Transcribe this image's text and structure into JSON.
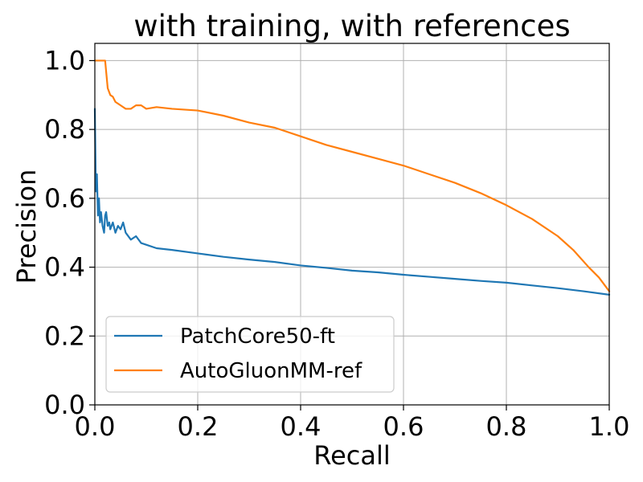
{
  "chart_data": {
    "type": "line",
    "title": "with training, with references",
    "xlabel": "Recall",
    "ylabel": "Precision",
    "xlim": [
      0.0,
      1.0
    ],
    "ylim": [
      0.0,
      1.05
    ],
    "xticks": [
      "0.0",
      "0.2",
      "0.4",
      "0.6",
      "0.8",
      "1.0"
    ],
    "yticks": [
      "0.0",
      "0.2",
      "0.4",
      "0.6",
      "0.8",
      "1.0"
    ],
    "grid": true,
    "legend_position": "lower-left",
    "series": [
      {
        "name": "PatchCore50-ft",
        "color": "#1f77b4",
        "points": [
          [
            0.0,
            0.86
          ],
          [
            0.002,
            0.62
          ],
          [
            0.004,
            0.67
          ],
          [
            0.006,
            0.55
          ],
          [
            0.008,
            0.6
          ],
          [
            0.01,
            0.53
          ],
          [
            0.012,
            0.56
          ],
          [
            0.015,
            0.52
          ],
          [
            0.018,
            0.5
          ],
          [
            0.02,
            0.55
          ],
          [
            0.022,
            0.56
          ],
          [
            0.025,
            0.52
          ],
          [
            0.028,
            0.53
          ],
          [
            0.03,
            0.51
          ],
          [
            0.035,
            0.53
          ],
          [
            0.04,
            0.5
          ],
          [
            0.045,
            0.52
          ],
          [
            0.05,
            0.51
          ],
          [
            0.055,
            0.53
          ],
          [
            0.06,
            0.5
          ],
          [
            0.07,
            0.48
          ],
          [
            0.08,
            0.49
          ],
          [
            0.09,
            0.47
          ],
          [
            0.1,
            0.465
          ],
          [
            0.12,
            0.455
          ],
          [
            0.15,
            0.45
          ],
          [
            0.2,
            0.44
          ],
          [
            0.25,
            0.43
          ],
          [
            0.3,
            0.422
          ],
          [
            0.35,
            0.415
          ],
          [
            0.4,
            0.405
          ],
          [
            0.45,
            0.398
          ],
          [
            0.5,
            0.39
          ],
          [
            0.55,
            0.385
          ],
          [
            0.6,
            0.378
          ],
          [
            0.65,
            0.372
          ],
          [
            0.7,
            0.366
          ],
          [
            0.75,
            0.36
          ],
          [
            0.8,
            0.355
          ],
          [
            0.85,
            0.347
          ],
          [
            0.9,
            0.339
          ],
          [
            0.95,
            0.33
          ],
          [
            1.0,
            0.32
          ]
        ]
      },
      {
        "name": "AutoGluonMM-ref",
        "color": "#ff7f0e",
        "points": [
          [
            0.0,
            1.0
          ],
          [
            0.02,
            1.0
          ],
          [
            0.025,
            0.92
          ],
          [
            0.03,
            0.9
          ],
          [
            0.035,
            0.895
          ],
          [
            0.04,
            0.88
          ],
          [
            0.05,
            0.87
          ],
          [
            0.06,
            0.86
          ],
          [
            0.07,
            0.86
          ],
          [
            0.08,
            0.87
          ],
          [
            0.09,
            0.87
          ],
          [
            0.1,
            0.86
          ],
          [
            0.12,
            0.865
          ],
          [
            0.15,
            0.86
          ],
          [
            0.2,
            0.855
          ],
          [
            0.25,
            0.84
          ],
          [
            0.3,
            0.82
          ],
          [
            0.35,
            0.805
          ],
          [
            0.4,
            0.78
          ],
          [
            0.45,
            0.755
          ],
          [
            0.5,
            0.735
          ],
          [
            0.55,
            0.715
          ],
          [
            0.6,
            0.695
          ],
          [
            0.65,
            0.67
          ],
          [
            0.7,
            0.645
          ],
          [
            0.75,
            0.615
          ],
          [
            0.8,
            0.58
          ],
          [
            0.85,
            0.54
          ],
          [
            0.9,
            0.49
          ],
          [
            0.93,
            0.45
          ],
          [
            0.96,
            0.4
          ],
          [
            0.98,
            0.37
          ],
          [
            1.0,
            0.33
          ]
        ]
      }
    ]
  }
}
